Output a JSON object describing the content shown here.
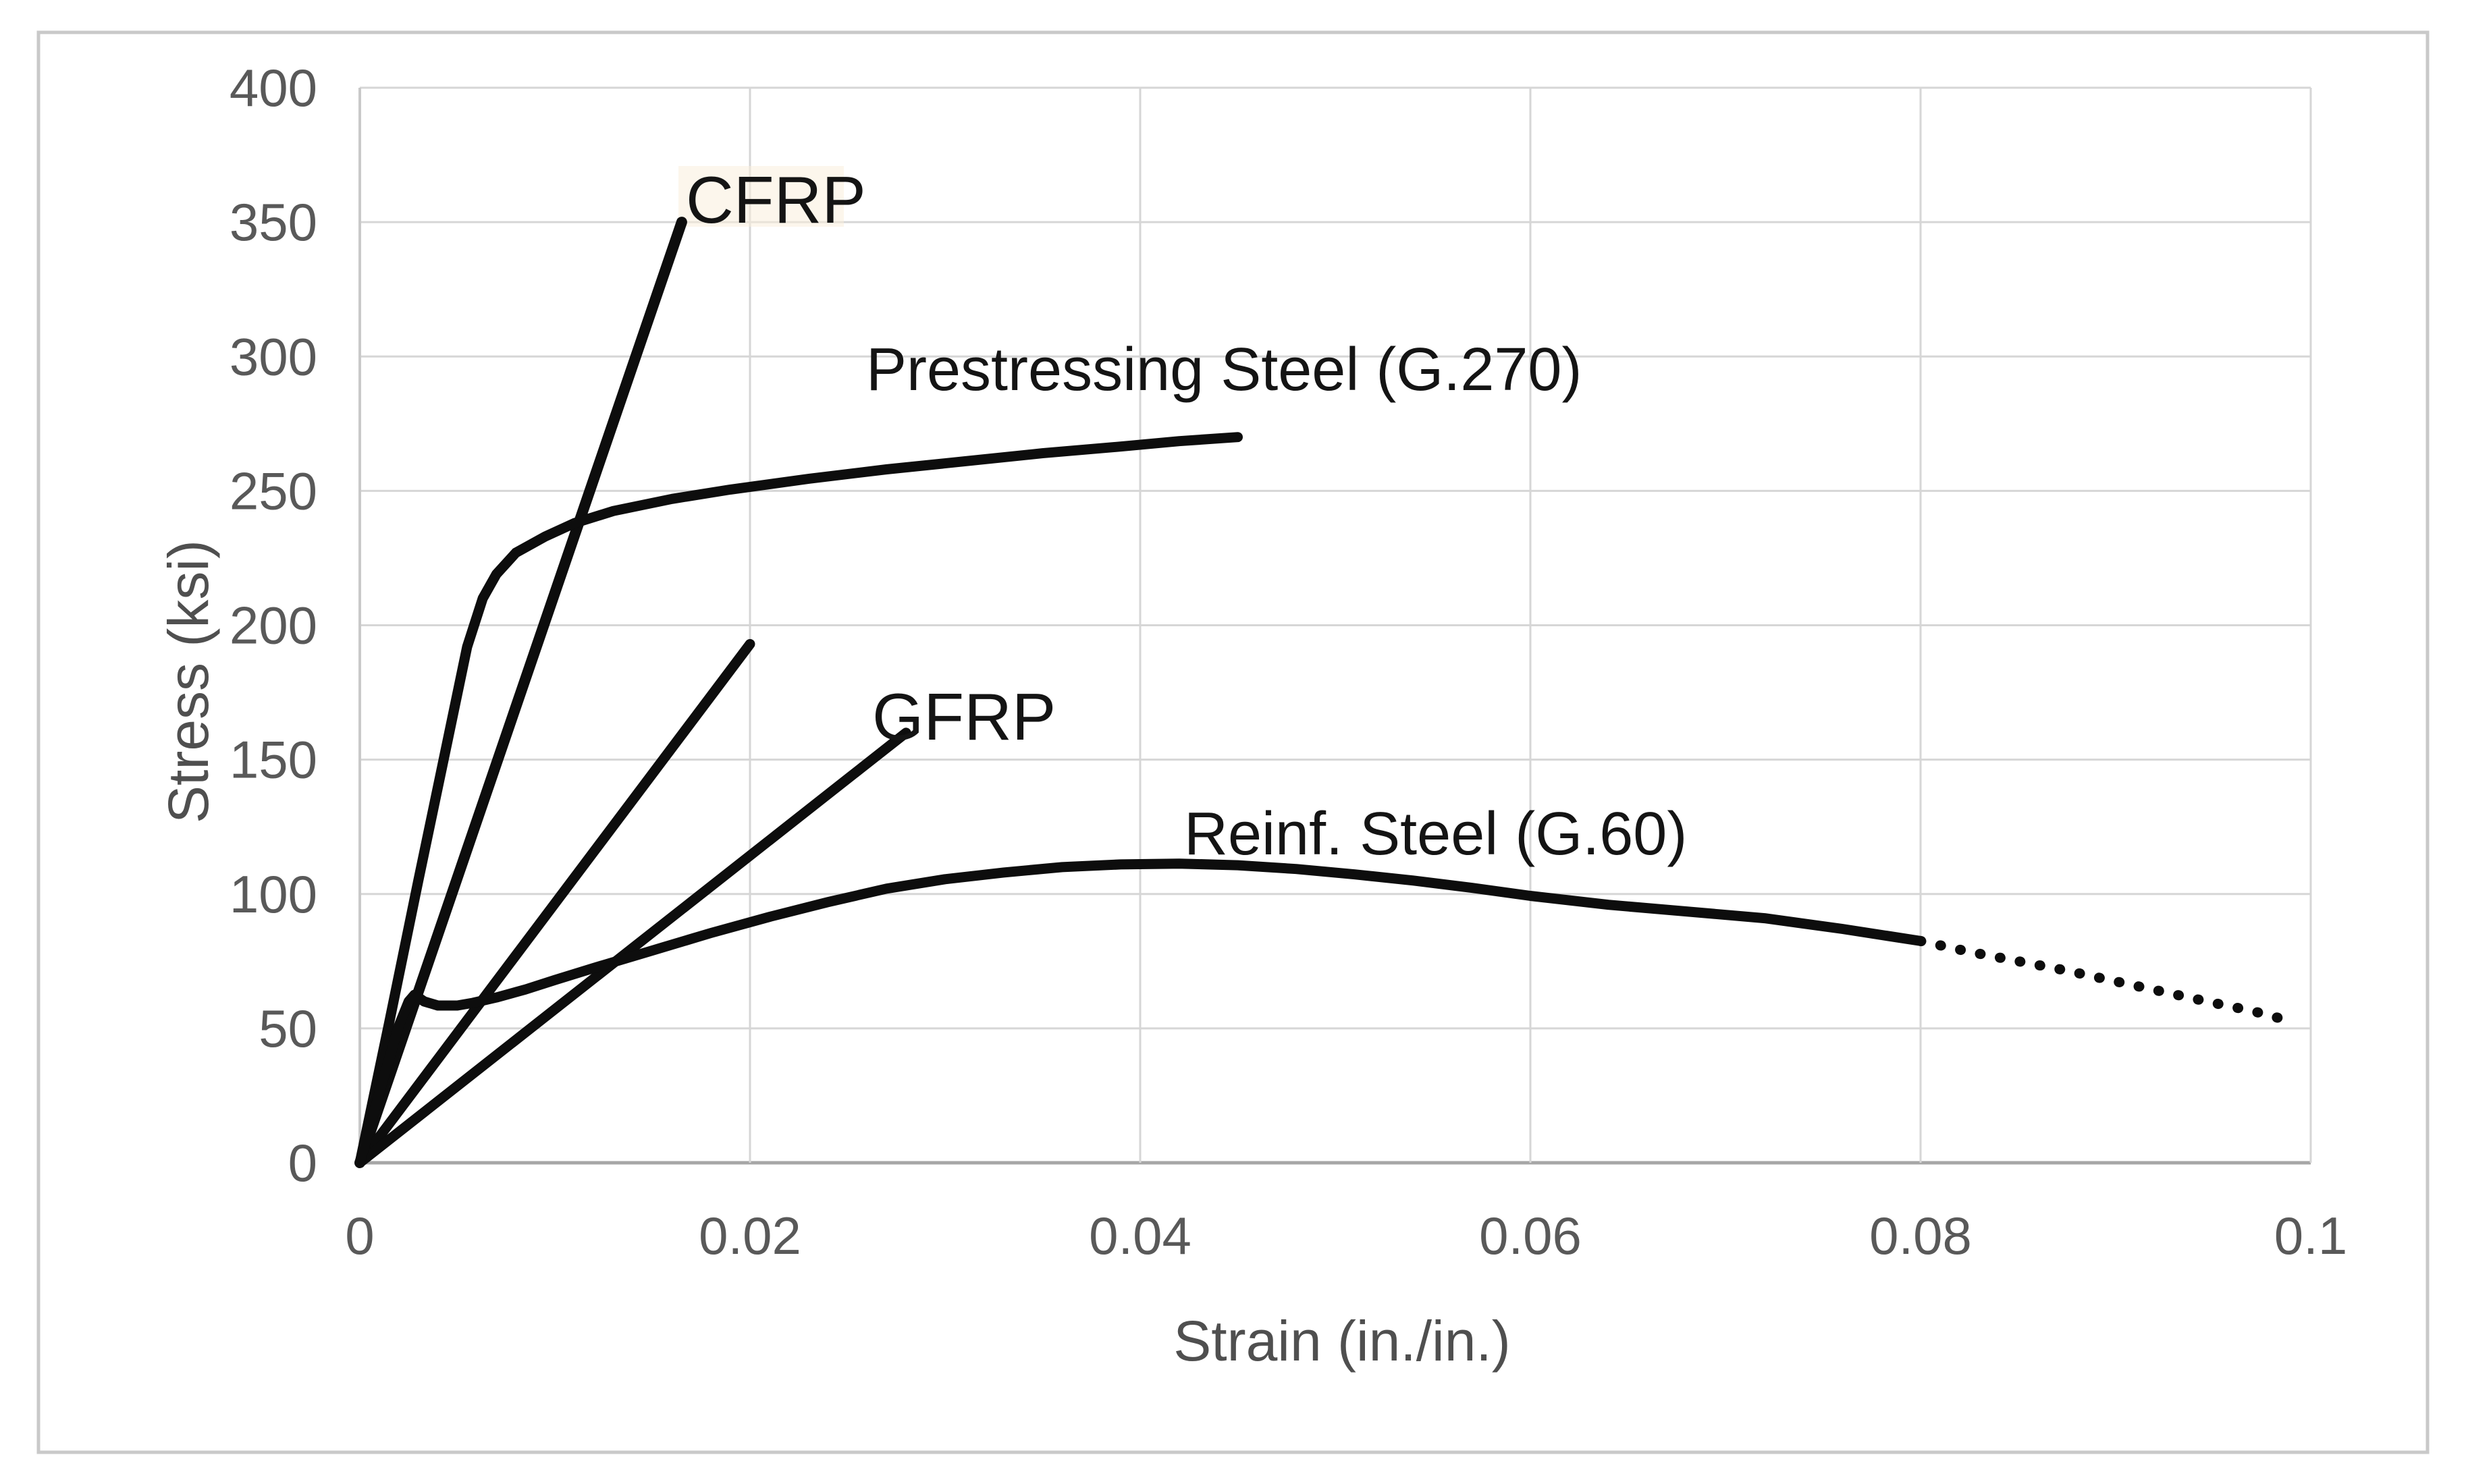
{
  "figure": {
    "background_color": "#ffffff",
    "outer_border_color": "#c9c9c9"
  },
  "chart_data": {
    "type": "line",
    "title": "",
    "xlabel": "Strain (in./in.)",
    "ylabel": "Stress (ksi)",
    "xlim": [
      0,
      0.1
    ],
    "ylim": [
      0,
      400
    ],
    "grid": true,
    "legend_position": "inline-labels",
    "gridline_color": "#d6d6d6",
    "x_axis_line_color": "#a6a6a6",
    "y_axis_line_color": "#c9c9c9",
    "tick_label_color": "#595959",
    "axis_title_color": "#4f4f4f",
    "series_color": "#0d0d0d",
    "x_ticks": [
      {
        "value": 0,
        "label": "0"
      },
      {
        "value": 0.02,
        "label": "0.02"
      },
      {
        "value": 0.04,
        "label": "0.04"
      },
      {
        "value": 0.06,
        "label": "0.06"
      },
      {
        "value": 0.08,
        "label": "0.08"
      },
      {
        "value": 0.1,
        "label": "0.1"
      }
    ],
    "y_ticks": [
      {
        "value": 0,
        "label": "0"
      },
      {
        "value": 50,
        "label": "50"
      },
      {
        "value": 100,
        "label": "100"
      },
      {
        "value": 150,
        "label": "150"
      },
      {
        "value": 200,
        "label": "200"
      },
      {
        "value": 250,
        "label": "250"
      },
      {
        "value": 300,
        "label": "300"
      },
      {
        "value": 350,
        "label": "350"
      },
      {
        "value": 400,
        "label": "400"
      }
    ],
    "series": [
      {
        "name": "cfrp",
        "label": "CFRP",
        "style": "solid",
        "points": [
          [
            0,
            0
          ],
          [
            0.0165,
            350
          ]
        ]
      },
      {
        "name": "unlabeled-frp",
        "label": "",
        "style": "solid",
        "points": [
          [
            0,
            0
          ],
          [
            0.02,
            193
          ]
        ]
      },
      {
        "name": "gfrp",
        "label": "GFRP",
        "style": "solid",
        "points": [
          [
            0,
            0
          ],
          [
            0.028,
            160
          ]
        ]
      },
      {
        "name": "prestressing-steel",
        "label": "Prestressing Steel (G.270)",
        "style": "solid",
        "points": [
          [
            0,
            0
          ],
          [
            0.0015,
            52
          ],
          [
            0.003,
            105
          ],
          [
            0.0045,
            157
          ],
          [
            0.0055,
            192
          ],
          [
            0.0063,
            210
          ],
          [
            0.007,
            219
          ],
          [
            0.008,
            227
          ],
          [
            0.0095,
            233
          ],
          [
            0.011,
            238
          ],
          [
            0.013,
            242.5
          ],
          [
            0.016,
            247
          ],
          [
            0.019,
            250.5
          ],
          [
            0.023,
            254.5
          ],
          [
            0.027,
            258
          ],
          [
            0.031,
            261
          ],
          [
            0.035,
            264
          ],
          [
            0.039,
            266.5
          ],
          [
            0.042,
            268.5
          ],
          [
            0.045,
            270
          ]
        ]
      },
      {
        "name": "reinf-steel",
        "label": "Reinf. Steel (G.60)",
        "style": "solid",
        "points": [
          [
            0,
            0
          ],
          [
            0.001,
            26
          ],
          [
            0.002,
            51
          ],
          [
            0.0025,
            60
          ],
          [
            0.0028,
            62.5
          ],
          [
            0.0033,
            60
          ],
          [
            0.004,
            58.5
          ],
          [
            0.005,
            58.5
          ],
          [
            0.0058,
            59.5
          ],
          [
            0.007,
            61.5
          ],
          [
            0.0085,
            64.5
          ],
          [
            0.01,
            68
          ],
          [
            0.012,
            72.5
          ],
          [
            0.015,
            79
          ],
          [
            0.018,
            85.5
          ],
          [
            0.021,
            91.5
          ],
          [
            0.024,
            97
          ],
          [
            0.027,
            102
          ],
          [
            0.03,
            105.5
          ],
          [
            0.033,
            108
          ],
          [
            0.036,
            110
          ],
          [
            0.039,
            111
          ],
          [
            0.042,
            111.3
          ],
          [
            0.045,
            110.7
          ],
          [
            0.048,
            109.3
          ],
          [
            0.051,
            107.3
          ],
          [
            0.054,
            105
          ],
          [
            0.057,
            102.3
          ],
          [
            0.06,
            99.3
          ],
          [
            0.064,
            96
          ],
          [
            0.068,
            93.5
          ],
          [
            0.072,
            91
          ],
          [
            0.076,
            87
          ],
          [
            0.08,
            82.5
          ]
        ]
      },
      {
        "name": "reinf-steel-fracture-extrapolation",
        "label": "",
        "style": "dotted",
        "points": [
          [
            0.08,
            82.5
          ],
          [
            0.0825,
            78.5
          ],
          [
            0.085,
            75
          ],
          [
            0.0875,
            71.5
          ],
          [
            0.09,
            67.5
          ],
          [
            0.0925,
            63.5
          ],
          [
            0.095,
            59.5
          ],
          [
            0.097,
            56.5
          ],
          [
            0.0988,
            53
          ]
        ]
      }
    ]
  }
}
